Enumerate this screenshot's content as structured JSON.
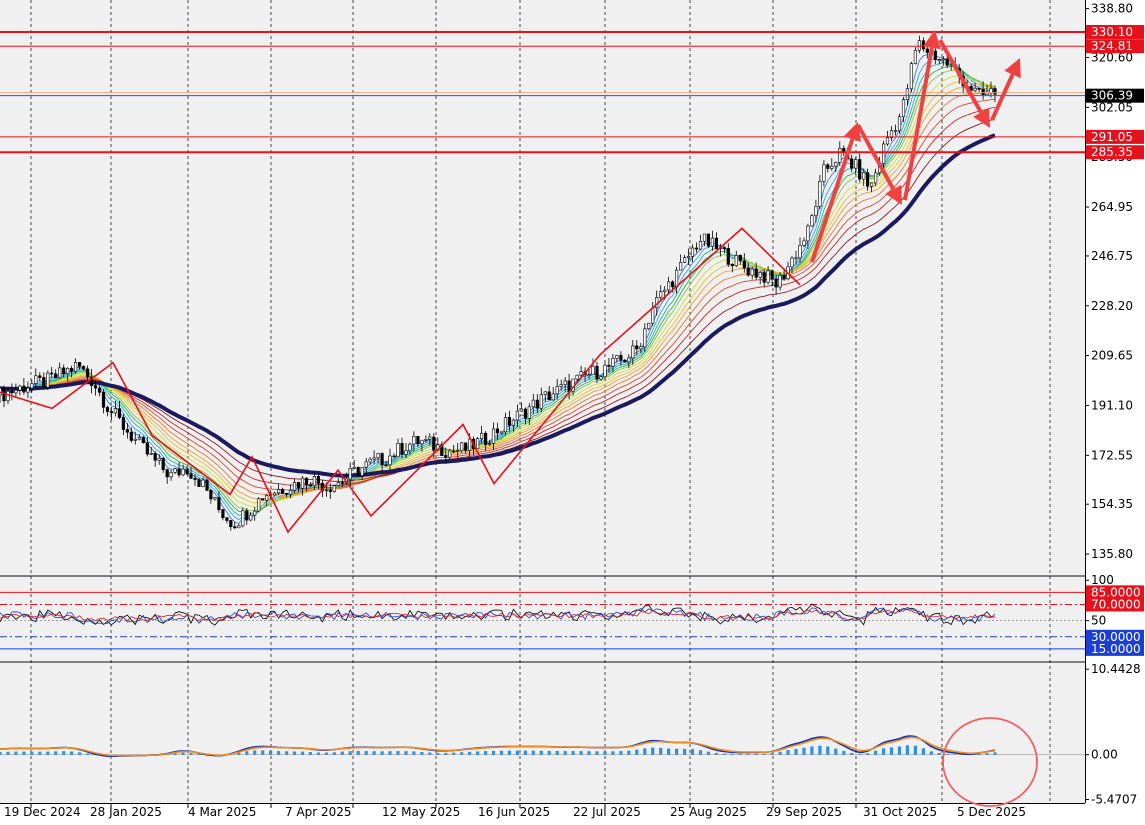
{
  "chart_data": [
    {
      "type": "candlestick",
      "panel": "price",
      "y_ticks": [
        "338.80",
        "320.60",
        "302.05",
        "283.50",
        "264.95",
        "246.75",
        "228.20",
        "209.65",
        "191.10",
        "172.55",
        "154.35",
        "135.80"
      ],
      "ylim": [
        128,
        342
      ],
      "price_levels": [
        {
          "label": "330.10",
          "value": 330.1,
          "color": "#e8101a"
        },
        {
          "label": "324.81",
          "value": 324.81,
          "color": "#e8101a"
        },
        {
          "label": "306.39",
          "value": 306.39,
          "color": "#000000"
        },
        {
          "label": "291.05",
          "value": 291.05,
          "color": "#e8101a"
        },
        {
          "label": "285.35",
          "value": 285.35,
          "color": "#e8101a"
        }
      ],
      "close_series_weekly": [
        195,
        197,
        199,
        200,
        203,
        206,
        200,
        190,
        183,
        176,
        170,
        165,
        168,
        162,
        153,
        147,
        152,
        158,
        160,
        162,
        164,
        161,
        163,
        167,
        170,
        172,
        176,
        178,
        176,
        174,
        175,
        178,
        182,
        186,
        190,
        194,
        197,
        200,
        203,
        205,
        208,
        212,
        228,
        236,
        244,
        253,
        250,
        246,
        242,
        240,
        236,
        246,
        256,
        278,
        285,
        280,
        272,
        290,
        300,
        326,
        322,
        318,
        312,
        306,
        308
      ],
      "ribbon_colors": [
        "#2f7de1",
        "#3aa3e8",
        "#22b3a8",
        "#36b34a",
        "#8bc34a",
        "#cddc39",
        "#e6c229",
        "#f0a030",
        "#e87830",
        "#d84a32",
        "#c02828",
        "#8e1b2a"
      ]
    },
    {
      "type": "line",
      "panel": "oscillator",
      "y_ticks": [
        "100",
        "50"
      ],
      "levels": [
        {
          "label": "85.0000",
          "value": 85,
          "color": "#e8101a"
        },
        {
          "label": "70.0000",
          "value": 70,
          "color": "#e8101a"
        },
        {
          "label": "30.0000",
          "value": 30,
          "color": "#1a3fd6"
        },
        {
          "label": "15.0000",
          "value": 15,
          "color": "#1a3fd6"
        }
      ],
      "ylim": [
        0,
        104
      ]
    },
    {
      "type": "bar",
      "panel": "histogram",
      "y_ticks": [
        "10.4428",
        "0.00",
        "-5.4707"
      ],
      "ylim": [
        -5.9,
        11.2
      ],
      "colors": {
        "positive": "#2f8fe0",
        "negative": "#f4a585",
        "line_main": "#1030b8",
        "line_signal": "#f08a1c"
      }
    }
  ],
  "x_axis_labels": [
    "19 Dec 2024",
    "28 Jan 2025",
    "4 Mar 2025",
    "7 Apr 2025",
    "12 May 2025",
    "16 Jun 2025",
    "22 Jul 2025",
    "25 Aug 2025",
    "29 Sep 2025",
    "31 Oct 2025",
    "5 Dec 2025"
  ]
}
